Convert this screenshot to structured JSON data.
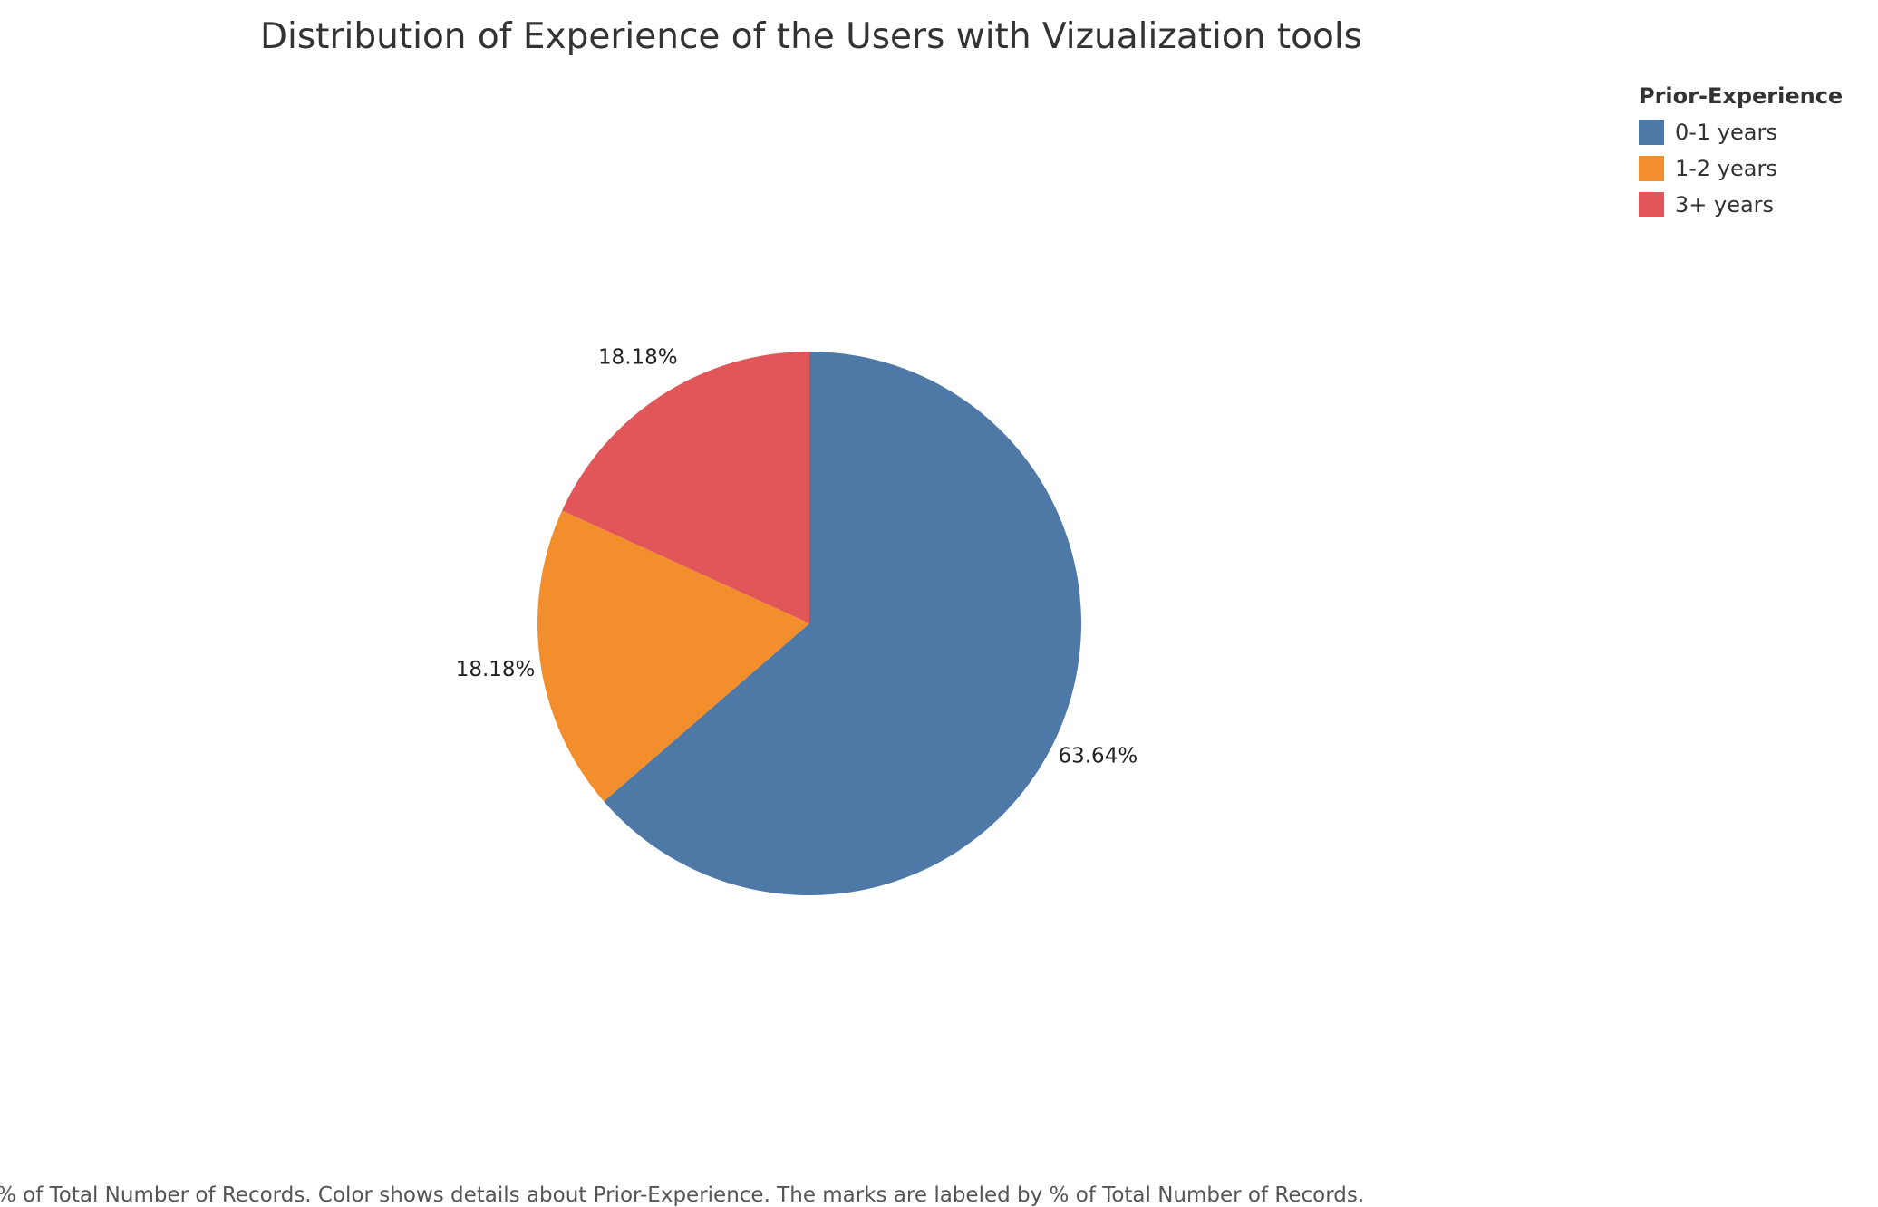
{
  "chart_data": {
    "type": "pie",
    "title": "Distribution of Experience of the Users with Vizualization tools",
    "legend_title": "Prior-Experience",
    "legend_position": "top-right",
    "start_angle_deg": 0,
    "direction": "clockwise",
    "slices": [
      {
        "name": "0-1 years",
        "value": 63.64,
        "label": "63.64%",
        "color": "#4e79a7"
      },
      {
        "name": "1-2 years",
        "value": 18.18,
        "label": "18.18%",
        "color": "#f28e2b"
      },
      {
        "name": "3+ years",
        "value": 18.18,
        "label": "18.18%",
        "color": "#e15759"
      }
    ],
    "caption": "% of Total Number of Records.  Color shows details about Prior-Experience.  The marks are labeled by % of Total Number of Records."
  }
}
